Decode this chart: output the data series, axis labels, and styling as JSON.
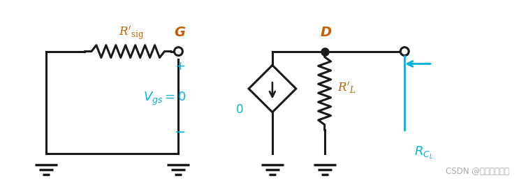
{
  "bg_color": "#ffffff",
  "dark_color": "#1a1a1a",
  "orange_color": "#c06000",
  "cyan_color": "#00b4e0",
  "gray_color": "#aaaaaa",
  "label_G": "G",
  "label_D": "D",
  "label_Rsig": "$R'_{\\mathrm{sig}}$",
  "label_RL": "$R'_L$",
  "label_RCL": "$R_{C_L}$",
  "label_Vgs": "$V_{gs} = 0$",
  "label_plus": "$+$",
  "label_minus": "$-$",
  "label_zero": "0",
  "watermark": "CSDN @爱寂寞的时光"
}
